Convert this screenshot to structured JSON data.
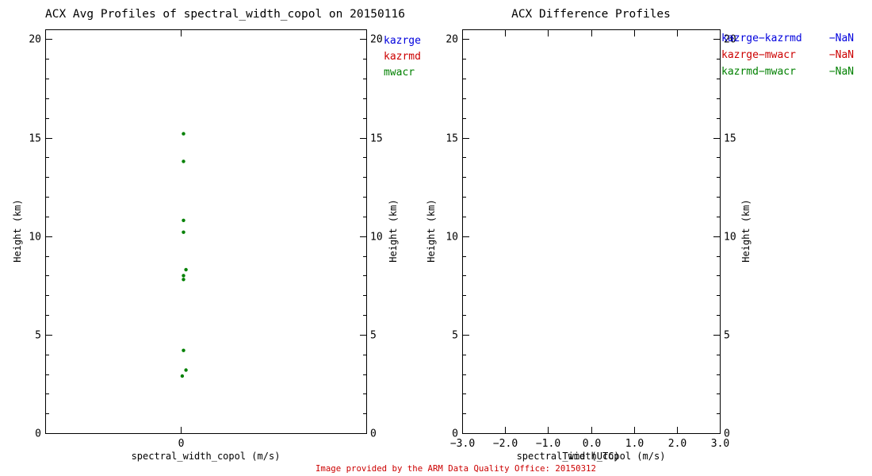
{
  "footnote": {
    "text": "Image provided by the ARM Data Quality Office: 20150312",
    "color": "#cc0000"
  },
  "chart_data": [
    {
      "type": "scatter",
      "title": "ACX Avg Profiles of spectral_width_copol on 20150116",
      "xlabel": "spectral_width_copol (m/s)",
      "ylabel_left": "Height (km)",
      "ylabel_right": "Height (km)",
      "xlim": [
        -0.55,
        0.75
      ],
      "ylim": [
        0,
        20.5
      ],
      "xticks": [
        {
          "v": 0,
          "label": "0"
        }
      ],
      "yticks": [
        {
          "v": 0,
          "label": "0"
        },
        {
          "v": 5,
          "label": "5"
        },
        {
          "v": 10,
          "label": "10"
        },
        {
          "v": 15,
          "label": "15"
        },
        {
          "v": 20,
          "label": "20"
        }
      ],
      "yminor_step": 1,
      "legend": [
        {
          "label": "kazrge",
          "color": "#0000dd"
        },
        {
          "label": "kazrmd",
          "color": "#cc0000"
        },
        {
          "label": "mwacr",
          "color": "#008000"
        }
      ],
      "series": [
        {
          "name": "kazrge",
          "color": "#0000dd",
          "points": []
        },
        {
          "name": "kazrmd",
          "color": "#cc0000",
          "points": []
        },
        {
          "name": "mwacr",
          "color": "#008000",
          "points": [
            [
              0.01,
              15.2
            ],
            [
              0.01,
              13.8
            ],
            [
              0.01,
              10.8
            ],
            [
              0.01,
              10.2
            ],
            [
              0.02,
              8.3
            ],
            [
              0.01,
              8.0
            ],
            [
              0.01,
              7.8
            ],
            [
              0.01,
              4.2
            ],
            [
              0.02,
              3.2
            ],
            [
              0.005,
              2.9
            ]
          ]
        }
      ]
    },
    {
      "type": "scatter",
      "title": "ACX Difference Profiles",
      "xlabel": "spectral_width_copol (m/s)",
      "xlabel_overlay": "Time (UTC)",
      "ylabel_left": "Height (km)",
      "ylabel_right": "Height (km)",
      "xlim": [
        -3,
        3
      ],
      "ylim": [
        0,
        20.5
      ],
      "xticks": [
        {
          "v": -3,
          "label": "−3.0"
        },
        {
          "v": -2,
          "label": "−2.0"
        },
        {
          "v": -1,
          "label": "−1.0"
        },
        {
          "v": 0,
          "label": "0.0"
        },
        {
          "v": 1,
          "label": "1.0"
        },
        {
          "v": 2,
          "label": "2.0"
        },
        {
          "v": 3,
          "label": "3.0"
        }
      ],
      "yticks": [
        {
          "v": 0,
          "label": "0"
        },
        {
          "v": 5,
          "label": "5"
        },
        {
          "v": 10,
          "label": "10"
        },
        {
          "v": 15,
          "label": "15"
        },
        {
          "v": 20,
          "label": "20"
        }
      ],
      "yminor_step": 1,
      "legend": [
        {
          "label": "kazrge−kazrmd",
          "value": "−NaN",
          "color": "#0000dd"
        },
        {
          "label": "kazrge−mwacr",
          "value": "−NaN",
          "color": "#cc0000"
        },
        {
          "label": "kazrmd−mwacr",
          "value": "−NaN",
          "color": "#008000"
        }
      ],
      "series": []
    }
  ]
}
